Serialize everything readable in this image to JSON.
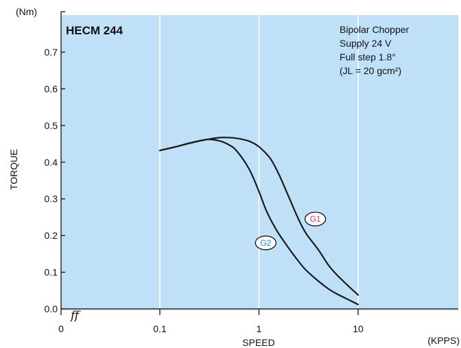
{
  "chart_data": {
    "type": "line",
    "title": "HECM 244",
    "annotation": [
      "Bipolar Chopper",
      "Supply 24 V",
      "Full step 1.8°",
      "(JL = 20 gcm²)"
    ],
    "xlabel": "SPEED",
    "x_unit": "(KPPS)",
    "ylabel": "TORQUE",
    "y_unit": "(Nm)",
    "x_scale": "log",
    "x_ticks": [
      0.1,
      1,
      10
    ],
    "x_tick_labels": [
      "0.1",
      "1",
      "10"
    ],
    "x_origin_label": "0",
    "axis_break_symbol": "ff",
    "ylim": [
      0,
      0.8
    ],
    "y_ticks": [
      0,
      0.1,
      0.2,
      0.3,
      0.4,
      0.5,
      0.6,
      0.7
    ],
    "y_tick_labels": [
      "0.0",
      "0.1",
      "0.2",
      "0.3",
      "0.4",
      "0.5",
      "0.6",
      "0.7"
    ],
    "grid": "vertical",
    "background": "#bfe0f7",
    "series": [
      {
        "name": "G1",
        "label_color": "#d6336c",
        "x": [
          0.1,
          0.15,
          0.2,
          0.3,
          0.4,
          0.5,
          0.6,
          0.8,
          1.0,
          1.3,
          1.6,
          2.0,
          2.5,
          3.0,
          4.0,
          5.0,
          6.0,
          8.0,
          10.0
        ],
        "y": [
          0.432,
          0.443,
          0.452,
          0.462,
          0.467,
          0.467,
          0.465,
          0.457,
          0.442,
          0.41,
          0.365,
          0.305,
          0.245,
          0.205,
          0.16,
          0.12,
          0.095,
          0.062,
          0.038
        ]
      },
      {
        "name": "G2",
        "label_color": "#1e90d6",
        "x": [
          0.1,
          0.15,
          0.2,
          0.3,
          0.4,
          0.5,
          0.6,
          0.8,
          1.0,
          1.2,
          1.5,
          2.0,
          2.5,
          3.0,
          4.0,
          5.0,
          6.0,
          8.0,
          10.0
        ],
        "y": [
          0.432,
          0.443,
          0.452,
          0.462,
          0.458,
          0.447,
          0.43,
          0.38,
          0.32,
          0.265,
          0.215,
          0.165,
          0.13,
          0.105,
          0.075,
          0.055,
          0.042,
          0.025,
          0.012
        ]
      }
    ],
    "series_label_positions": [
      {
        "name": "G1",
        "x": 3.7,
        "y": 0.245
      },
      {
        "name": "G2",
        "x": 1.17,
        "y": 0.18
      }
    ]
  }
}
